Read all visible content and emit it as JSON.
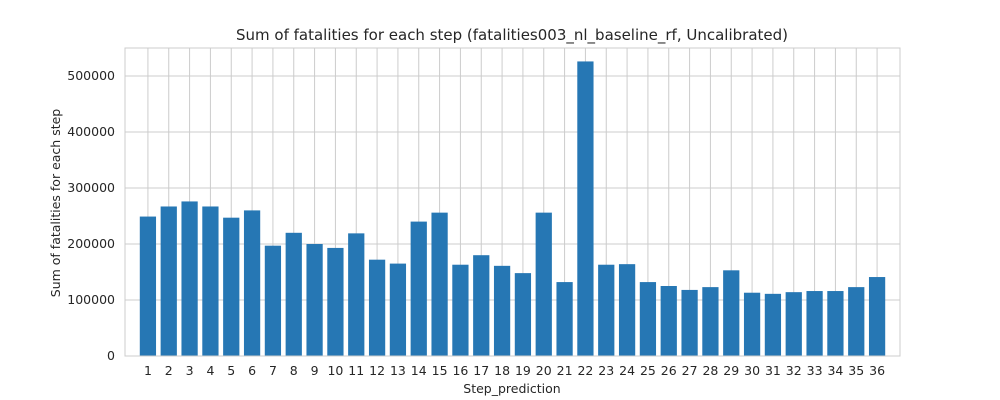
{
  "chart_data": {
    "type": "bar",
    "title": "Sum of fatalities for each step (fatalities003_nl_baseline_rf, Uncalibrated)",
    "xlabel": "Step_prediction",
    "ylabel": "Sum of fatalities for each step",
    "ylim": [
      0,
      550000
    ],
    "yticks": [
      0,
      100000,
      200000,
      300000,
      400000,
      500000
    ],
    "grid": true,
    "bar_color": "#2677b4",
    "categories": [
      "1",
      "2",
      "3",
      "4",
      "5",
      "6",
      "7",
      "8",
      "9",
      "10",
      "11",
      "12",
      "13",
      "14",
      "15",
      "16",
      "17",
      "18",
      "19",
      "20",
      "21",
      "22",
      "23",
      "24",
      "25",
      "26",
      "27",
      "28",
      "29",
      "30",
      "31",
      "32",
      "33",
      "34",
      "35",
      "36"
    ],
    "values": [
      249000,
      267000,
      276000,
      267000,
      247000,
      260000,
      197000,
      220000,
      200000,
      193000,
      219000,
      172000,
      165000,
      240000,
      256000,
      163000,
      180000,
      161000,
      148000,
      256000,
      132000,
      526000,
      163000,
      164000,
      132000,
      125000,
      118000,
      123000,
      153000,
      113000,
      111000,
      114000,
      116000,
      116000,
      123000,
      141000
    ]
  }
}
